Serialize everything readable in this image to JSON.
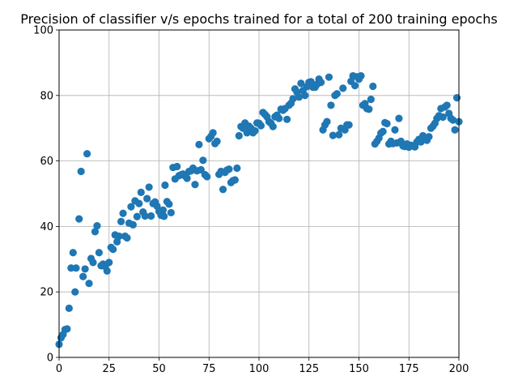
{
  "chart_data": {
    "type": "scatter",
    "title": "Precision of classifier v/s epochs trained for a total of 200 training epochs",
    "xlabel": "",
    "ylabel": "",
    "xlim": [
      0,
      200
    ],
    "ylim": [
      0,
      100
    ],
    "grid": true,
    "x_ticks": [
      0,
      25,
      50,
      75,
      100,
      125,
      150,
      175,
      200
    ],
    "y_ticks": [
      0,
      20,
      40,
      60,
      80,
      100
    ],
    "marker_color": "#1f77b4",
    "series": [
      {
        "points": [
          [
            0,
            4
          ],
          [
            1,
            6
          ],
          [
            2,
            7
          ],
          [
            3,
            8.5
          ],
          [
            4,
            8.7
          ],
          [
            5,
            15
          ],
          [
            6,
            27.3
          ],
          [
            7,
            32
          ],
          [
            8,
            20
          ],
          [
            8.5,
            27.3
          ],
          [
            10,
            42.3
          ],
          [
            11,
            56.8
          ],
          [
            12,
            24.7
          ],
          [
            13,
            27
          ],
          [
            14,
            62.2
          ],
          [
            15,
            22.6
          ],
          [
            16,
            30.2
          ],
          [
            17,
            29
          ],
          [
            18,
            38.4
          ],
          [
            19,
            40.2
          ],
          [
            20,
            32
          ],
          [
            21,
            28
          ],
          [
            22,
            28.5
          ],
          [
            23,
            27.8
          ],
          [
            24,
            26.4
          ],
          [
            25,
            29
          ],
          [
            26,
            33.6
          ],
          [
            27,
            33
          ],
          [
            28,
            37.4
          ],
          [
            29,
            35.3
          ],
          [
            30,
            37
          ],
          [
            31,
            41.5
          ],
          [
            32,
            44
          ],
          [
            33,
            37
          ],
          [
            34,
            36.5
          ],
          [
            35,
            41
          ],
          [
            36,
            46
          ],
          [
            37,
            40.5
          ],
          [
            38,
            47.8
          ],
          [
            39,
            43
          ],
          [
            40,
            47
          ],
          [
            41,
            50.4
          ],
          [
            42,
            44.4
          ],
          [
            43,
            43.2
          ],
          [
            44,
            48.5
          ],
          [
            45,
            52
          ],
          [
            46,
            43.2
          ],
          [
            47,
            47
          ],
          [
            48,
            47.5
          ],
          [
            49,
            46.2
          ],
          [
            50,
            44.6
          ],
          [
            51,
            43.4
          ],
          [
            52,
            45
          ],
          [
            52.5,
            43.1
          ],
          [
            53,
            52.6
          ],
          [
            54,
            47.6
          ],
          [
            55,
            46.8
          ],
          [
            56,
            44.2
          ],
          [
            57,
            58
          ],
          [
            58,
            54.5
          ],
          [
            59,
            58.3
          ],
          [
            60,
            55.5
          ],
          [
            61,
            55.8
          ],
          [
            62,
            56
          ],
          [
            63,
            55.4
          ],
          [
            64,
            54.7
          ],
          [
            65,
            56.8
          ],
          [
            66,
            57
          ],
          [
            67,
            57.8
          ],
          [
            68,
            52.8
          ],
          [
            69,
            57
          ],
          [
            70,
            65
          ],
          [
            71,
            57.3
          ],
          [
            72,
            60.2
          ],
          [
            73,
            55.8
          ],
          [
            74,
            55.2
          ],
          [
            75,
            66.8
          ],
          [
            76,
            67.5
          ],
          [
            77,
            68.6
          ],
          [
            78,
            65.3
          ],
          [
            79,
            66
          ],
          [
            80,
            55.9
          ],
          [
            81,
            56.8
          ],
          [
            82,
            51.3
          ],
          [
            83,
            56.5
          ],
          [
            84,
            57.2
          ],
          [
            85,
            57.5
          ],
          [
            86,
            53.4
          ],
          [
            87,
            54
          ],
          [
            88,
            54.2
          ],
          [
            89,
            57.8
          ],
          [
            90,
            67.7
          ],
          [
            91,
            70.5
          ],
          [
            92,
            70
          ],
          [
            93,
            71.6
          ],
          [
            94,
            68.6
          ],
          [
            95,
            70.6
          ],
          [
            96,
            70
          ],
          [
            97,
            68.6
          ],
          [
            98,
            69.2
          ],
          [
            99,
            71.6
          ],
          [
            100,
            71.5
          ],
          [
            101,
            70.8
          ],
          [
            102,
            74.8
          ],
          [
            103,
            74.2
          ],
          [
            104,
            73.5
          ],
          [
            105,
            72
          ],
          [
            106,
            71.5
          ],
          [
            107,
            70.5
          ],
          [
            108,
            73.5
          ],
          [
            109,
            74
          ],
          [
            110,
            73
          ],
          [
            111,
            75.8
          ],
          [
            112,
            75.5
          ],
          [
            113,
            76
          ],
          [
            114,
            72.7
          ],
          [
            115,
            77
          ],
          [
            116,
            77.6
          ],
          [
            117,
            79
          ],
          [
            118,
            82
          ],
          [
            119,
            81
          ],
          [
            120,
            79.5
          ],
          [
            121,
            83.7
          ],
          [
            122,
            81.5
          ],
          [
            123,
            80
          ],
          [
            124,
            82.7
          ],
          [
            125,
            84
          ],
          [
            126,
            84.2
          ],
          [
            127,
            82.5
          ],
          [
            128,
            82.5
          ],
          [
            129,
            83.4
          ],
          [
            130,
            85
          ],
          [
            131,
            84
          ],
          [
            132,
            69.5
          ],
          [
            133,
            71
          ],
          [
            134,
            72
          ],
          [
            135,
            85.6
          ],
          [
            136,
            77
          ],
          [
            137,
            67.8
          ],
          [
            138,
            80
          ],
          [
            139,
            80.5
          ],
          [
            140,
            68
          ],
          [
            141,
            70
          ],
          [
            142,
            82.2
          ],
          [
            143,
            69.5
          ],
          [
            144,
            71
          ],
          [
            145,
            71
          ],
          [
            146,
            84.3
          ],
          [
            147,
            86
          ],
          [
            148,
            83
          ],
          [
            149,
            85.7
          ],
          [
            150,
            85
          ],
          [
            151,
            86
          ],
          [
            152,
            77
          ],
          [
            153,
            77.5
          ],
          [
            154,
            76
          ],
          [
            155,
            75.8
          ],
          [
            156,
            78.8
          ],
          [
            157,
            82.8
          ],
          [
            158,
            65.2
          ],
          [
            159,
            66
          ],
          [
            160,
            67
          ],
          [
            161,
            68.5
          ],
          [
            162,
            69
          ],
          [
            163,
            71.7
          ],
          [
            164,
            71.4
          ],
          [
            165,
            65.2
          ],
          [
            166,
            66
          ],
          [
            167,
            65.3
          ],
          [
            168,
            69.5
          ],
          [
            169,
            65.5
          ],
          [
            170,
            73
          ],
          [
            171,
            66
          ],
          [
            172,
            64.6
          ],
          [
            173,
            64.4
          ],
          [
            174,
            65.2
          ],
          [
            175,
            64.2
          ],
          [
            176,
            64.8
          ],
          [
            177,
            64.6
          ],
          [
            178,
            64.3
          ],
          [
            179,
            65.8
          ],
          [
            180,
            66.6
          ],
          [
            181,
            65.8
          ],
          [
            182,
            67.7
          ],
          [
            183,
            66.8
          ],
          [
            184,
            66.3
          ],
          [
            185,
            67.4
          ],
          [
            186,
            70
          ],
          [
            187,
            70.6
          ],
          [
            188,
            71.5
          ],
          [
            189,
            73
          ],
          [
            190,
            73.8
          ],
          [
            191,
            76
          ],
          [
            192,
            73.4
          ],
          [
            193,
            76.5
          ],
          [
            194,
            77
          ],
          [
            195,
            74.5
          ],
          [
            196,
            73
          ],
          [
            197,
            72.5
          ],
          [
            198,
            69.5
          ],
          [
            199,
            79.3
          ],
          [
            200,
            72
          ]
        ]
      }
    ]
  }
}
